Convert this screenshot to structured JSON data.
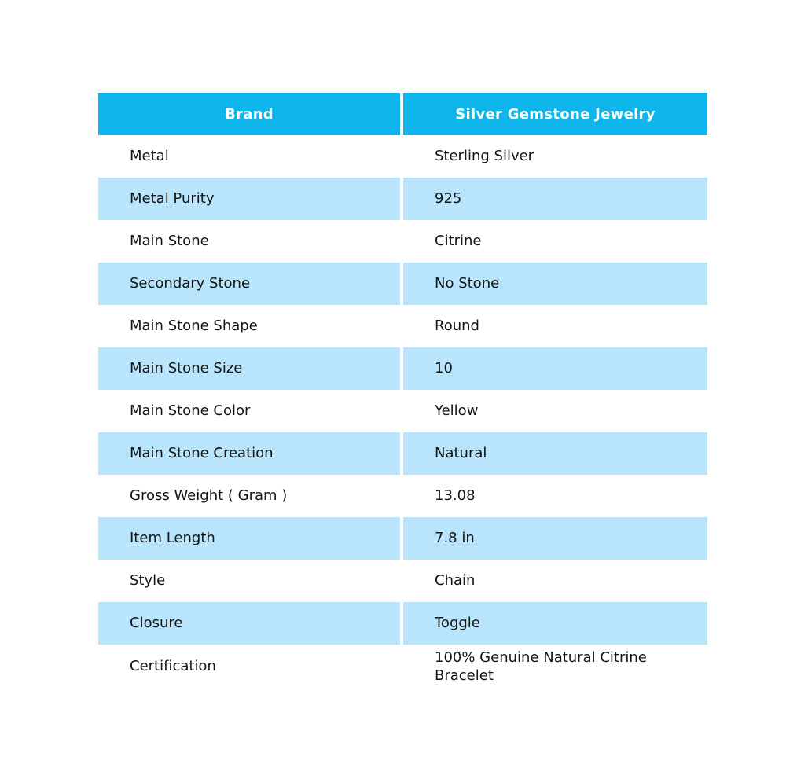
{
  "table": {
    "header": {
      "col1": "Brand",
      "col2": "Silver Gemstone Jewelry"
    },
    "rows": [
      {
        "label": "Metal",
        "value": "Sterling Silver"
      },
      {
        "label": "Metal Purity",
        "value": "925"
      },
      {
        "label": "Main Stone",
        "value": "Citrine"
      },
      {
        "label": "Secondary Stone",
        "value": "No Stone"
      },
      {
        "label": "Main Stone Shape",
        "value": "Round"
      },
      {
        "label": "Main Stone Size",
        "value": "10"
      },
      {
        "label": "Main Stone Color",
        "value": "Yellow"
      },
      {
        "label": "Main Stone Creation",
        "value": "Natural"
      },
      {
        "label": "Gross Weight ( Gram )",
        "value": "13.08"
      },
      {
        "label": "Item Length",
        "value": "7.8 in"
      },
      {
        "label": "Style",
        "value": "Chain"
      },
      {
        "label": "Closure",
        "value": "Toggle"
      },
      {
        "label": "Certification",
        "value": "100% Genuine Natural Citrine Bracelet"
      }
    ],
    "colors": {
      "header_bg": "#0DB5EA",
      "stripe_bg": "#B8E5FC",
      "header_text": "#FFFFFF",
      "body_text": "#141414",
      "page_bg": "#FFFFFF"
    }
  }
}
